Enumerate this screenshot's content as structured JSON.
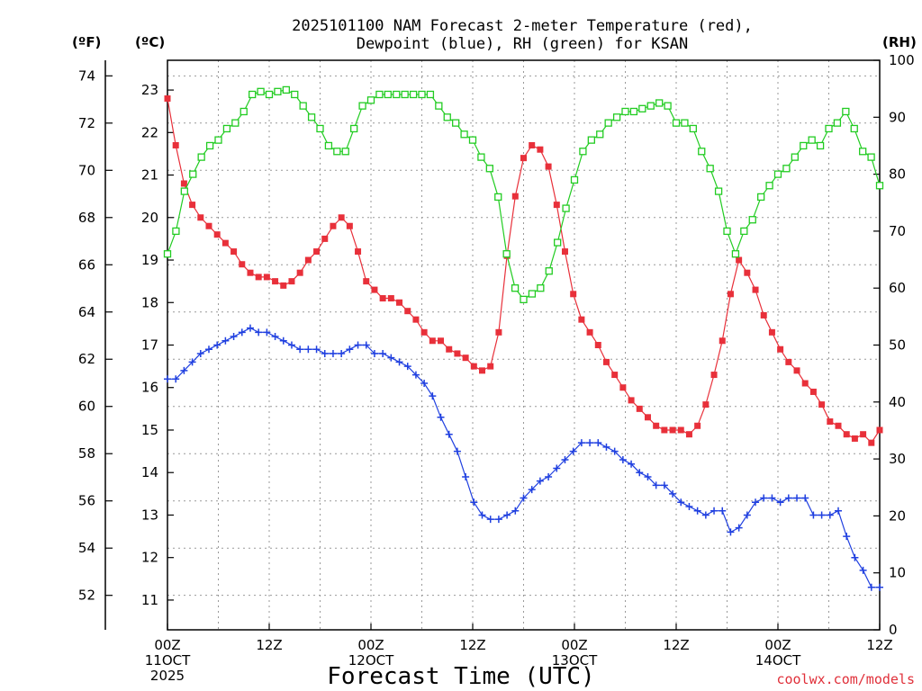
{
  "chart_data": {
    "type": "line",
    "title_lines": [
      "2025101100 NAM Forecast 2-meter Temperature (red),",
      "Dewpoint (blue), RH (green) for KSAN"
    ],
    "xlabel": "Forecast Time (UTC)",
    "credit": "coolwx.com/models",
    "units": {
      "f": "(ºF)",
      "c": "(ºC)",
      "rh": "(RH)"
    },
    "x_hours_range": [
      0,
      84
    ],
    "x_ticks": [
      {
        "hour": 0,
        "lines": [
          "00Z",
          "11OCT",
          "2025"
        ]
      },
      {
        "hour": 12,
        "lines": [
          "12Z"
        ]
      },
      {
        "hour": 24,
        "lines": [
          "00Z",
          "12OCT"
        ]
      },
      {
        "hour": 36,
        "lines": [
          "12Z"
        ]
      },
      {
        "hour": 48,
        "lines": [
          "00Z",
          "13OCT"
        ]
      },
      {
        "hour": 60,
        "lines": [
          "12Z"
        ]
      },
      {
        "hour": 72,
        "lines": [
          "00Z",
          "14OCT"
        ]
      },
      {
        "hour": 84,
        "lines": [
          "12Z"
        ]
      }
    ],
    "y_celsius_range": [
      10.3,
      23.7
    ],
    "y_celsius_ticks": [
      "11",
      "12",
      "13",
      "14",
      "15",
      "16",
      "17",
      "18",
      "19",
      "20",
      "21",
      "22",
      "23"
    ],
    "y_fahrenheit_ticks": [
      "52",
      "54",
      "56",
      "58",
      "60",
      "62",
      "64",
      "66",
      "68",
      "70",
      "72",
      "74"
    ],
    "y_rh_range": [
      0,
      100
    ],
    "y_rh_ticks": [
      "0",
      "10",
      "20",
      "30",
      "40",
      "50",
      "60",
      "70",
      "80",
      "90",
      "100"
    ],
    "grid": true,
    "series": [
      {
        "name": "Temperature",
        "color": "#e8303a",
        "marker": "filled-square",
        "axis": "celsius",
        "values": [
          22.8,
          21.7,
          20.8,
          20.3,
          20.0,
          19.8,
          19.6,
          19.4,
          19.2,
          18.9,
          18.7,
          18.6,
          18.6,
          18.5,
          18.4,
          18.5,
          18.7,
          19.0,
          19.2,
          19.5,
          19.8,
          20.0,
          19.8,
          19.2,
          18.5,
          18.3,
          18.1,
          18.1,
          18.0,
          17.8,
          17.6,
          17.3,
          17.1,
          17.1,
          16.9,
          16.8,
          16.7,
          16.5,
          16.4,
          16.5,
          17.3,
          19.1,
          20.5,
          21.4,
          21.7,
          21.6,
          21.2,
          20.3,
          19.2,
          18.2,
          17.6,
          17.3,
          17.0,
          16.6,
          16.3,
          16.0,
          15.7,
          15.5,
          15.3,
          15.1,
          15.0,
          15.0,
          15.0,
          14.9,
          15.1,
          15.6,
          16.3,
          17.1,
          18.2,
          19.0,
          18.7,
          18.3,
          17.7,
          17.3,
          16.9,
          16.6,
          16.4,
          16.1,
          15.9,
          15.6,
          15.2,
          15.1,
          14.9,
          14.8,
          14.9,
          14.7,
          15.0
        ]
      },
      {
        "name": "Dewpoint",
        "color": "#2040e0",
        "marker": "plus",
        "axis": "celsius",
        "values": [
          16.2,
          16.2,
          16.4,
          16.6,
          16.8,
          16.9,
          17.0,
          17.1,
          17.2,
          17.3,
          17.4,
          17.3,
          17.3,
          17.2,
          17.1,
          17.0,
          16.9,
          16.9,
          16.9,
          16.8,
          16.8,
          16.8,
          16.9,
          17.0,
          17.0,
          16.8,
          16.8,
          16.7,
          16.6,
          16.5,
          16.3,
          16.1,
          15.8,
          15.3,
          14.9,
          14.5,
          13.9,
          13.3,
          13.0,
          12.9,
          12.9,
          13.0,
          13.1,
          13.4,
          13.6,
          13.8,
          13.9,
          14.1,
          14.3,
          14.5,
          14.7,
          14.7,
          14.7,
          14.6,
          14.5,
          14.3,
          14.2,
          14.0,
          13.9,
          13.7,
          13.7,
          13.5,
          13.3,
          13.2,
          13.1,
          13.0,
          13.1,
          13.1,
          12.6,
          12.7,
          13.0,
          13.3,
          13.4,
          13.4,
          13.3,
          13.4,
          13.4,
          13.4,
          13.0,
          13.0,
          13.0,
          13.1,
          12.5,
          12.0,
          11.7,
          11.3,
          11.3
        ]
      },
      {
        "name": "RH",
        "color": "#22cc22",
        "marker": "open-square",
        "axis": "rh",
        "values": [
          66,
          70,
          77,
          80,
          83,
          85,
          86,
          88,
          89,
          91,
          94,
          94.5,
          94,
          94.5,
          94.8,
          94,
          92,
          90,
          88,
          85,
          84,
          84,
          88,
          92,
          93,
          94,
          94,
          94,
          94,
          94,
          94,
          94,
          92,
          90,
          89,
          87,
          86,
          83,
          81,
          76,
          66,
          60,
          58,
          59,
          60,
          63,
          68,
          74,
          79,
          84,
          86,
          87,
          89,
          90,
          91,
          91,
          91.5,
          92,
          92.5,
          92,
          89,
          89,
          88,
          84,
          81,
          77,
          70,
          66,
          70,
          72,
          76,
          78,
          80,
          81,
          83,
          85,
          86,
          85,
          88,
          89,
          91,
          88,
          84,
          83,
          78
        ]
      }
    ]
  }
}
